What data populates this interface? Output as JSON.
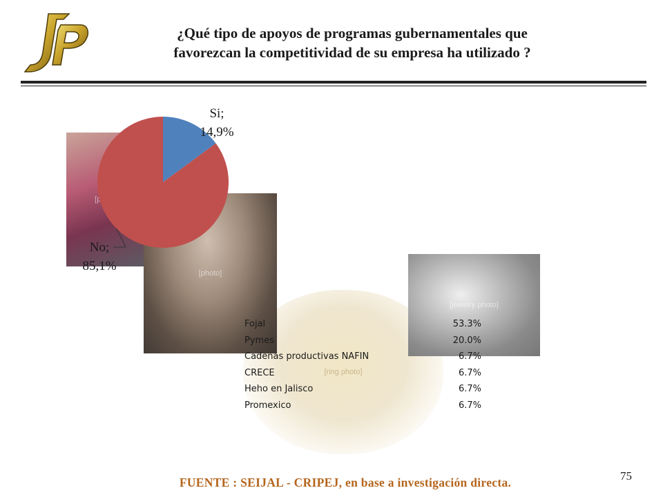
{
  "page": {
    "title_line1": "¿Qué tipo de apoyos de programas gubernamentales que",
    "title_line2": "favorezcan la competitividad de su empresa ha utilizado ?",
    "source": "FUENTE :  SEIJAL - CRIPEJ,  en base a investigación directa.",
    "slide_number": "75"
  },
  "colors": {
    "pie_si": "#4f81bd",
    "pie_no": "#c0504d",
    "source_text": "#b5651d",
    "logo_gold": "#c9a32b"
  },
  "chart_data": [
    {
      "type": "pie",
      "slices": [
        {
          "name": "Si",
          "value": 14.9,
          "label_line1": "Si;",
          "label_line2": "14,9%"
        },
        {
          "name": "No",
          "value": 85.1,
          "label_line1": "No;",
          "label_line2": "85,1%"
        }
      ],
      "start_angle_deg": 0,
      "direction": "clockwise",
      "legend": "none"
    },
    {
      "type": "table",
      "rows": [
        {
          "label": "Fojal",
          "value": "53.3%"
        },
        {
          "label": "Pymes",
          "value": "20.0%"
        },
        {
          "label": "Cadenas productivas NAFIN",
          "value": "6.7%"
        },
        {
          "label": "CRECE",
          "value": "6.7%"
        },
        {
          "label": "Heho en Jalisco",
          "value": "6.7%"
        },
        {
          "label": "Promexico",
          "value": "6.7%"
        }
      ]
    }
  ]
}
